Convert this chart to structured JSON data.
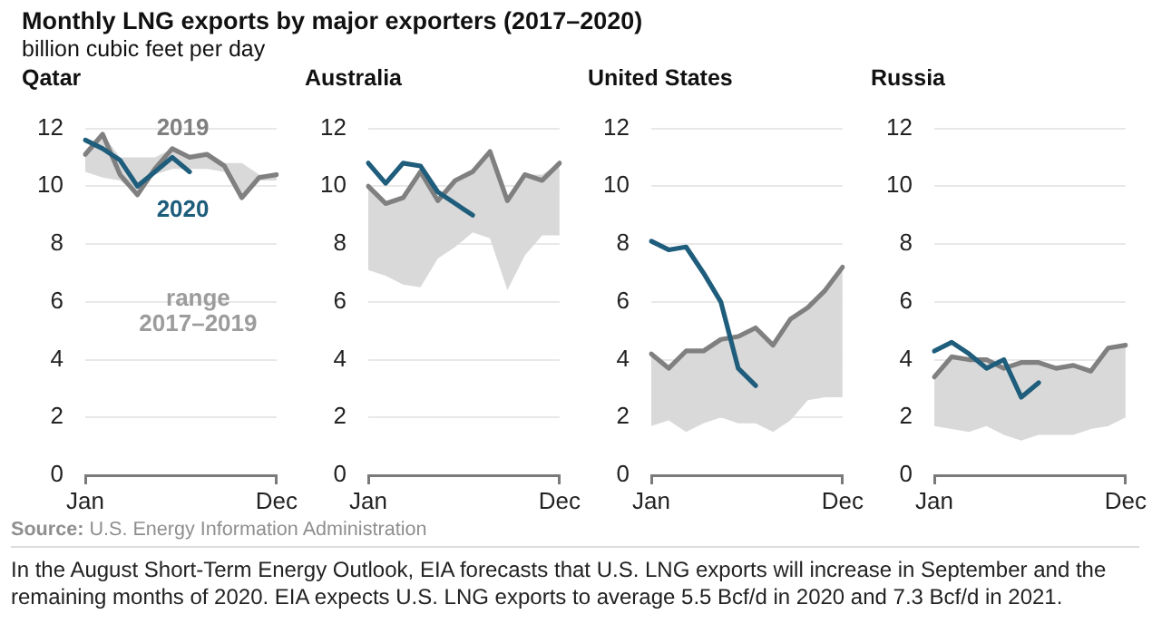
{
  "chart_data": [
    {
      "type": "line",
      "title": "Monthly LNG exports by major exporters (2017–2020)",
      "ylabel": "billion cubic feet per day",
      "subtitle": "Qatar",
      "categories": [
        "Jan",
        null,
        null,
        null,
        null,
        null,
        null,
        null,
        null,
        null,
        null,
        "Dec"
      ],
      "ylim": [
        0,
        12
      ],
      "yticks": [
        0,
        2,
        4,
        6,
        8,
        10,
        12
      ],
      "grid": "y",
      "legend": false,
      "series": [
        {
          "name": "2019",
          "color": "#808080",
          "values": [
            11.1,
            11.8,
            10.4,
            9.7,
            10.6,
            11.3,
            11.0,
            11.1,
            10.7,
            9.6,
            10.3,
            10.4
          ],
          "lower": [
            10.5,
            10.3,
            10.2,
            9.7,
            10.4,
            10.6,
            10.6,
            10.6,
            10.5,
            9.6,
            10.2,
            10.2
          ],
          "upper": [
            11.1,
            11.8,
            11.0,
            11.0,
            11.0,
            11.3,
            11.1,
            11.2,
            10.8,
            10.8,
            10.4,
            10.4
          ]
        },
        {
          "name": "2020",
          "color": "#1e5d7b",
          "values": [
            11.6,
            11.3,
            10.9,
            10.0,
            10.5,
            11.0,
            10.5,
            null,
            null,
            null,
            null,
            null
          ]
        }
      ],
      "annotations": [
        "range 2017–2019"
      ]
    },
    {
      "type": "line",
      "subtitle": "Australia",
      "categories": [
        "Jan",
        null,
        null,
        null,
        null,
        null,
        null,
        null,
        null,
        null,
        null,
        "Dec"
      ],
      "ylim": [
        0,
        12
      ],
      "yticks": [
        0,
        2,
        4,
        6,
        8,
        10,
        12
      ],
      "grid": "y",
      "legend": false,
      "series": [
        {
          "color": "#808080",
          "values": [
            10.0,
            9.4,
            9.6,
            10.5,
            9.5,
            10.2,
            10.5,
            11.2,
            9.5,
            10.4,
            10.2,
            10.8
          ],
          "lower": [
            7.1,
            6.9,
            6.6,
            6.5,
            7.5,
            7.9,
            8.4,
            8.2,
            6.4,
            7.6,
            8.3,
            8.3
          ],
          "upper": [
            10.0,
            9.4,
            9.6,
            10.5,
            9.5,
            10.2,
            10.5,
            11.2,
            9.5,
            10.4,
            10.4,
            10.8
          ]
        },
        {
          "color": "#1e5d7b",
          "values": [
            10.8,
            10.1,
            10.8,
            10.7,
            9.8,
            9.4,
            9.0,
            null,
            null,
            null,
            null,
            null
          ]
        }
      ]
    },
    {
      "type": "line",
      "subtitle": "United States",
      "categories": [
        "Jan",
        null,
        null,
        null,
        null,
        null,
        null,
        null,
        null,
        null,
        null,
        "Dec"
      ],
      "ylim": [
        0,
        12
      ],
      "yticks": [
        0,
        2,
        4,
        6,
        8,
        10,
        12
      ],
      "grid": "y",
      "legend": false,
      "series": [
        {
          "color": "#808080",
          "values": [
            4.2,
            3.7,
            4.3,
            4.3,
            4.7,
            4.8,
            5.1,
            4.5,
            5.4,
            5.8,
            6.4,
            7.2
          ],
          "lower": [
            1.7,
            1.9,
            1.5,
            1.8,
            2.0,
            1.8,
            1.8,
            1.5,
            1.9,
            2.6,
            2.7,
            2.7
          ],
          "upper": [
            4.2,
            3.7,
            4.3,
            4.3,
            4.7,
            4.8,
            5.1,
            4.5,
            5.4,
            5.8,
            6.4,
            7.2
          ]
        },
        {
          "color": "#1e5d7b",
          "values": [
            8.1,
            7.8,
            7.9,
            7.0,
            6.0,
            3.7,
            3.1,
            null,
            null,
            null,
            null,
            null
          ]
        }
      ]
    },
    {
      "type": "line",
      "subtitle": "Russia",
      "categories": [
        "Jan",
        null,
        null,
        null,
        null,
        null,
        null,
        null,
        null,
        null,
        null,
        "Dec"
      ],
      "ylim": [
        0,
        12
      ],
      "yticks": [
        0,
        2,
        4,
        6,
        8,
        10,
        12
      ],
      "grid": "y",
      "legend": false,
      "series": [
        {
          "color": "#808080",
          "values": [
            3.4,
            4.1,
            4.0,
            4.0,
            3.7,
            3.9,
            3.9,
            3.7,
            3.8,
            3.6,
            4.4,
            4.5
          ],
          "lower": [
            1.7,
            1.6,
            1.5,
            1.7,
            1.4,
            1.2,
            1.4,
            1.4,
            1.4,
            1.6,
            1.7,
            2.0
          ],
          "upper": [
            3.4,
            4.1,
            4.0,
            4.0,
            3.8,
            3.9,
            3.9,
            3.8,
            3.8,
            3.6,
            4.4,
            4.5
          ]
        },
        {
          "color": "#1e5d7b",
          "values": [
            4.3,
            4.6,
            4.2,
            3.7,
            4.0,
            2.7,
            3.2,
            null,
            null,
            null,
            null,
            null
          ]
        }
      ],
      "annotations": [
        "Source: U.S. Energy Information Administration",
        "In the August Short-Term Energy Outlook, EIA forecasts that U.S. LNG exports will increase in September and the remaining months of 2020. EIA expects U.S. LNG exports to average 5.5 Bcf/d in 2020 and 7.3 Bcf/d in 2021."
      ]
    }
  ]
}
